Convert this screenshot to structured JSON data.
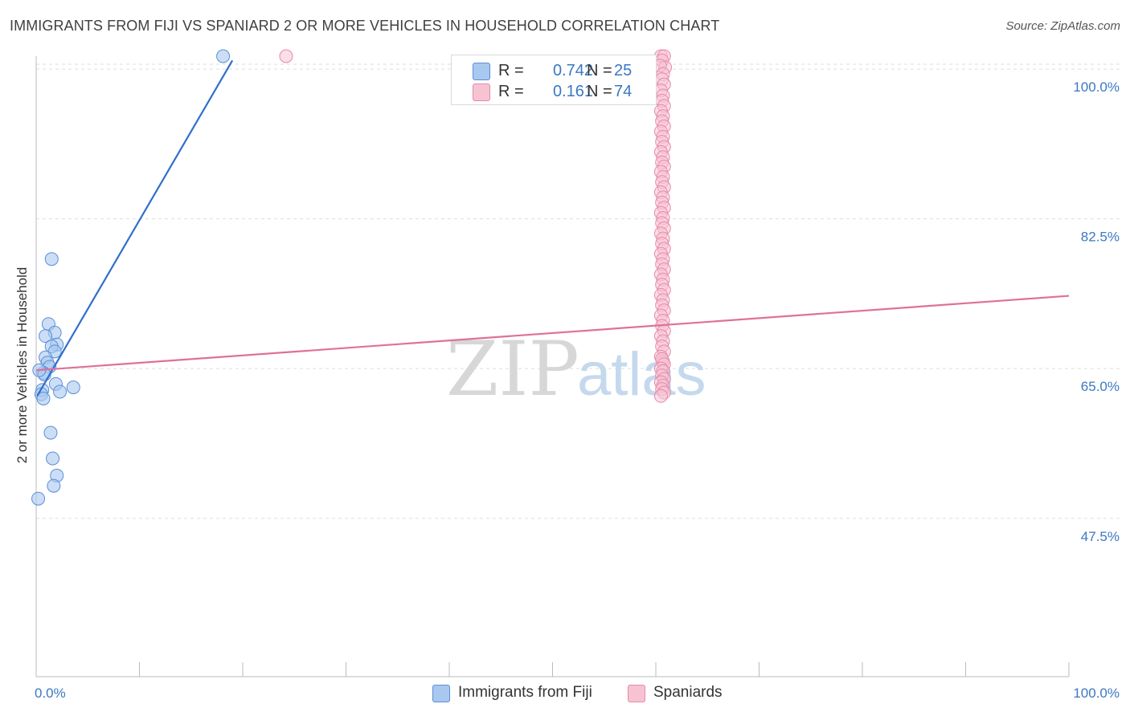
{
  "title": "IMMIGRANTS FROM FIJI VS SPANIARD 2 OR MORE VEHICLES IN HOUSEHOLD CORRELATION CHART",
  "source": "Source: ZipAtlas.com",
  "watermark": {
    "zip": "ZIP",
    "atlas": "atlas"
  },
  "colors": {
    "fiji_fill": "#a9c8f0",
    "fiji_stroke": "#5b8fd6",
    "fiji_line": "#2f6fcc",
    "spain_fill": "#f7c3d3",
    "spain_stroke": "#e58aa8",
    "spain_line": "#e07099",
    "tick_label": "#3b78c4",
    "grid": "#dddddd"
  },
  "legend": {
    "rows": [
      {
        "r_label": "R =",
        "r_value": "0.742",
        "n_label": "N =",
        "n_value": "25"
      },
      {
        "r_label": "R =",
        "r_value": "0.161",
        "n_label": "N =",
        "n_value": "74"
      }
    ]
  },
  "bottom_legend": [
    "Immigrants from Fiji",
    "Spaniards"
  ],
  "chart_data": {
    "type": "scatter",
    "title": "IMMIGRANTS FROM FIJI VS SPANIARD 2 OR MORE VEHICLES IN HOUSEHOLD CORRELATION CHART",
    "xlabel": "",
    "ylabel": "2 or more Vehicles in Household",
    "xlim": [
      0,
      100
    ],
    "ylim": [
      29.0,
      101.5
    ],
    "x_tick_labels": {
      "left": "0.0%",
      "right": "100.0%"
    },
    "y_ticks": [
      {
        "value": 100.0,
        "label": "100.0%"
      },
      {
        "value": 82.5,
        "label": "82.5%"
      },
      {
        "value": 65.0,
        "label": "65.0%"
      },
      {
        "value": 47.5,
        "label": "47.5%"
      }
    ],
    "grid": true,
    "series": [
      {
        "name": "Immigrants from Fiji",
        "r": 0.742,
        "n": 25,
        "trendline": [
          [
            0.1,
            61.8
          ],
          [
            19.0,
            101.0
          ]
        ],
        "points": [
          [
            18.1,
            101.5
          ],
          [
            1.5,
            77.8
          ],
          [
            1.2,
            70.2
          ],
          [
            1.8,
            69.2
          ],
          [
            0.9,
            68.8
          ],
          [
            2.0,
            67.8
          ],
          [
            1.5,
            67.6
          ],
          [
            1.8,
            67.0
          ],
          [
            0.9,
            66.3
          ],
          [
            1.1,
            65.7
          ],
          [
            1.3,
            65.2
          ],
          [
            0.7,
            64.5
          ],
          [
            0.8,
            64.3
          ],
          [
            1.9,
            63.2
          ],
          [
            3.6,
            62.8
          ],
          [
            0.6,
            62.5
          ],
          [
            2.3,
            62.3
          ],
          [
            0.5,
            62.0
          ],
          [
            0.7,
            61.5
          ],
          [
            1.4,
            57.5
          ],
          [
            1.6,
            54.5
          ],
          [
            2.0,
            52.5
          ],
          [
            1.7,
            51.3
          ],
          [
            0.2,
            49.8
          ],
          [
            0.3,
            64.8
          ]
        ]
      },
      {
        "name": "Spaniards",
        "r": 0.161,
        "n": 74,
        "trendline": [
          [
            0.0,
            64.8
          ],
          [
            100.0,
            73.5
          ]
        ],
        "points": [
          [
            24.2,
            101.5
          ],
          [
            60.5,
            101.5
          ],
          [
            60.8,
            101.5
          ],
          [
            60.6,
            101.0
          ],
          [
            60.9,
            100.2
          ],
          [
            60.4,
            100.4
          ],
          [
            60.7,
            99.4
          ],
          [
            60.6,
            98.8
          ],
          [
            60.8,
            98.2
          ],
          [
            60.5,
            97.5
          ],
          [
            60.7,
            96.9
          ],
          [
            60.6,
            96.3
          ],
          [
            60.8,
            95.7
          ],
          [
            60.5,
            95.1
          ],
          [
            60.7,
            94.5
          ],
          [
            60.6,
            93.9
          ],
          [
            60.8,
            93.3
          ],
          [
            60.5,
            92.7
          ],
          [
            60.7,
            92.1
          ],
          [
            60.6,
            91.5
          ],
          [
            60.8,
            90.9
          ],
          [
            60.5,
            90.3
          ],
          [
            60.7,
            89.7
          ],
          [
            60.6,
            89.1
          ],
          [
            60.8,
            88.6
          ],
          [
            60.5,
            88.0
          ],
          [
            60.7,
            87.4
          ],
          [
            60.6,
            86.8
          ],
          [
            60.8,
            86.2
          ],
          [
            60.5,
            85.6
          ],
          [
            60.7,
            85.0
          ],
          [
            60.6,
            84.4
          ],
          [
            60.8,
            83.8
          ],
          [
            60.5,
            83.2
          ],
          [
            60.7,
            82.6
          ],
          [
            60.6,
            82.0
          ],
          [
            60.8,
            81.4
          ],
          [
            60.5,
            80.8
          ],
          [
            60.7,
            80.2
          ],
          [
            60.6,
            79.6
          ],
          [
            60.8,
            79.0
          ],
          [
            60.5,
            78.4
          ],
          [
            60.7,
            77.8
          ],
          [
            60.6,
            77.2
          ],
          [
            60.8,
            76.6
          ],
          [
            60.5,
            76.0
          ],
          [
            60.7,
            75.4
          ],
          [
            60.6,
            74.8
          ],
          [
            60.8,
            74.2
          ],
          [
            60.5,
            73.6
          ],
          [
            60.7,
            73.0
          ],
          [
            60.6,
            72.4
          ],
          [
            60.8,
            71.8
          ],
          [
            60.5,
            71.2
          ],
          [
            60.7,
            70.6
          ],
          [
            60.6,
            70.0
          ],
          [
            60.8,
            69.4
          ],
          [
            60.5,
            68.8
          ],
          [
            60.7,
            68.2
          ],
          [
            60.6,
            67.6
          ],
          [
            60.8,
            67.0
          ],
          [
            60.5,
            66.4
          ],
          [
            60.7,
            65.8
          ],
          [
            60.6,
            66.1
          ],
          [
            60.8,
            65.5
          ],
          [
            60.5,
            65.0
          ],
          [
            60.7,
            64.7
          ],
          [
            60.6,
            64.2
          ],
          [
            60.8,
            63.8
          ],
          [
            60.5,
            63.4
          ],
          [
            60.7,
            63.0
          ],
          [
            60.6,
            62.6
          ],
          [
            60.8,
            62.2
          ],
          [
            60.5,
            61.8
          ]
        ]
      }
    ]
  }
}
